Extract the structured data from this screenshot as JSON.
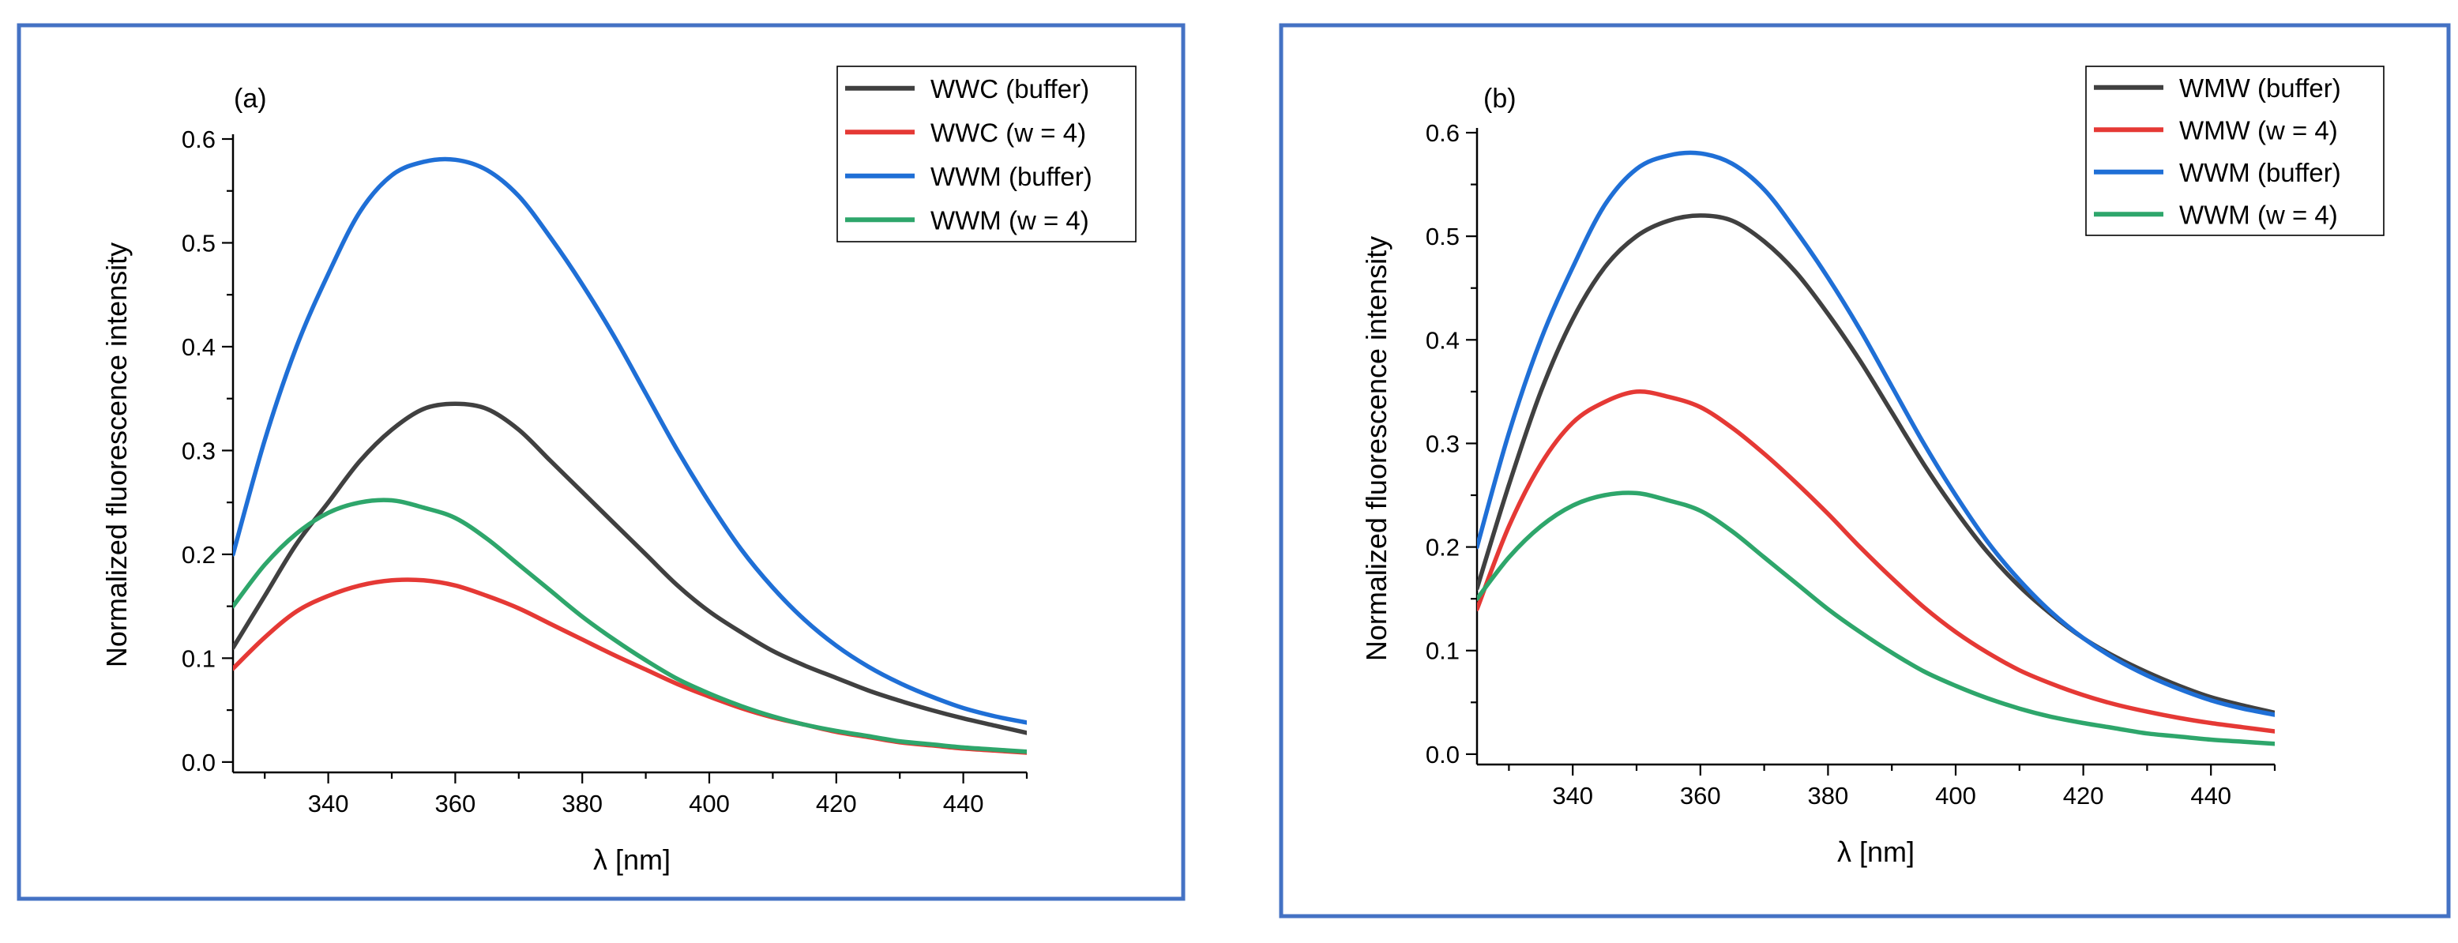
{
  "chart_data": [
    {
      "type": "line",
      "panel_label": "(a)",
      "xlabel": "λ [nm]",
      "ylabel": "Normalized fluorescence intensity",
      "xlim": [
        325,
        450
      ],
      "ylim": [
        -0.01,
        0.6
      ],
      "xticks": [
        340,
        360,
        380,
        400,
        420,
        440
      ],
      "xtick_labels": [
        "340",
        "360",
        "380",
        "400",
        "420",
        "440"
      ],
      "yticks": [
        0.0,
        0.1,
        0.2,
        0.3,
        0.4,
        0.5,
        0.6
      ],
      "ytick_labels": [
        "0.0",
        "0.1",
        "0.2",
        "0.3",
        "0.4",
        "0.5",
        "0.6"
      ],
      "grid": false,
      "legend_position": "top-right",
      "border_color": "#4472c4",
      "x": [
        325,
        330,
        335,
        340,
        345,
        350,
        355,
        360,
        365,
        370,
        375,
        380,
        385,
        390,
        395,
        400,
        405,
        410,
        415,
        420,
        425,
        430,
        435,
        440,
        445,
        450
      ],
      "series": [
        {
          "name": "WWC (buffer)",
          "color": "#404040",
          "values": [
            0.11,
            0.16,
            0.21,
            0.25,
            0.29,
            0.32,
            0.34,
            0.345,
            0.34,
            0.32,
            0.29,
            0.26,
            0.23,
            0.2,
            0.17,
            0.145,
            0.125,
            0.107,
            0.093,
            0.081,
            0.069,
            0.059,
            0.05,
            0.042,
            0.035,
            0.028
          ]
        },
        {
          "name": "WWC (w = 4)",
          "color": "#e53935",
          "values": [
            0.09,
            0.12,
            0.145,
            0.16,
            0.17,
            0.175,
            0.175,
            0.17,
            0.16,
            0.148,
            0.133,
            0.118,
            0.103,
            0.089,
            0.075,
            0.063,
            0.052,
            0.043,
            0.036,
            0.029,
            0.024,
            0.019,
            0.016,
            0.013,
            0.011,
            0.009
          ]
        },
        {
          "name": "WWM (buffer)",
          "color": "#1f6fd6",
          "values": [
            0.2,
            0.31,
            0.4,
            0.47,
            0.53,
            0.565,
            0.578,
            0.58,
            0.57,
            0.545,
            0.505,
            0.46,
            0.41,
            0.355,
            0.3,
            0.25,
            0.205,
            0.168,
            0.137,
            0.112,
            0.092,
            0.076,
            0.063,
            0.052,
            0.044,
            0.038
          ]
        },
        {
          "name": "WWM (w = 4)",
          "color": "#2ea66b",
          "values": [
            0.15,
            0.19,
            0.22,
            0.24,
            0.25,
            0.252,
            0.245,
            0.235,
            0.215,
            0.19,
            0.165,
            0.14,
            0.118,
            0.098,
            0.08,
            0.066,
            0.054,
            0.044,
            0.036,
            0.03,
            0.025,
            0.02,
            0.017,
            0.014,
            0.012,
            0.01
          ]
        }
      ]
    },
    {
      "type": "line",
      "panel_label": "(b)",
      "xlabel": "λ [nm]",
      "ylabel": "Normalized fluorescence intensity",
      "xlim": [
        325,
        450
      ],
      "ylim": [
        -0.01,
        0.6
      ],
      "xticks": [
        340,
        360,
        380,
        400,
        420,
        440
      ],
      "xtick_labels": [
        "340",
        "360",
        "380",
        "400",
        "420",
        "440"
      ],
      "yticks": [
        0.0,
        0.1,
        0.2,
        0.3,
        0.4,
        0.5,
        0.6
      ],
      "ytick_labels": [
        "0.0",
        "0.1",
        "0.2",
        "0.3",
        "0.4",
        "0.5",
        "0.6"
      ],
      "grid": false,
      "legend_position": "top-right",
      "border_color": "#4472c4",
      "x": [
        325,
        330,
        335,
        340,
        345,
        350,
        355,
        360,
        365,
        370,
        375,
        380,
        385,
        390,
        395,
        400,
        405,
        410,
        415,
        420,
        425,
        430,
        435,
        440,
        445,
        450
      ],
      "series": [
        {
          "name": "WMW (buffer)",
          "color": "#404040",
          "values": [
            0.16,
            0.26,
            0.35,
            0.42,
            0.47,
            0.5,
            0.515,
            0.52,
            0.515,
            0.495,
            0.465,
            0.425,
            0.38,
            0.33,
            0.28,
            0.235,
            0.195,
            0.162,
            0.135,
            0.112,
            0.094,
            0.079,
            0.066,
            0.055,
            0.047,
            0.04
          ]
        },
        {
          "name": "WMW (w = 4)",
          "color": "#e53935",
          "values": [
            0.14,
            0.22,
            0.28,
            0.32,
            0.34,
            0.35,
            0.345,
            0.335,
            0.315,
            0.29,
            0.262,
            0.232,
            0.2,
            0.17,
            0.142,
            0.118,
            0.098,
            0.081,
            0.068,
            0.057,
            0.048,
            0.041,
            0.035,
            0.03,
            0.026,
            0.022
          ]
        },
        {
          "name": "WWM (buffer)",
          "color": "#1f6fd6",
          "values": [
            0.2,
            0.31,
            0.4,
            0.47,
            0.53,
            0.565,
            0.578,
            0.58,
            0.57,
            0.545,
            0.505,
            0.46,
            0.41,
            0.355,
            0.3,
            0.25,
            0.205,
            0.168,
            0.137,
            0.112,
            0.092,
            0.076,
            0.063,
            0.052,
            0.044,
            0.038
          ]
        },
        {
          "name": "WWM (w = 4)",
          "color": "#2ea66b",
          "values": [
            0.15,
            0.19,
            0.22,
            0.24,
            0.25,
            0.252,
            0.245,
            0.235,
            0.215,
            0.19,
            0.165,
            0.14,
            0.118,
            0.098,
            0.08,
            0.066,
            0.054,
            0.044,
            0.036,
            0.03,
            0.025,
            0.02,
            0.017,
            0.014,
            0.012,
            0.01
          ]
        }
      ]
    }
  ]
}
